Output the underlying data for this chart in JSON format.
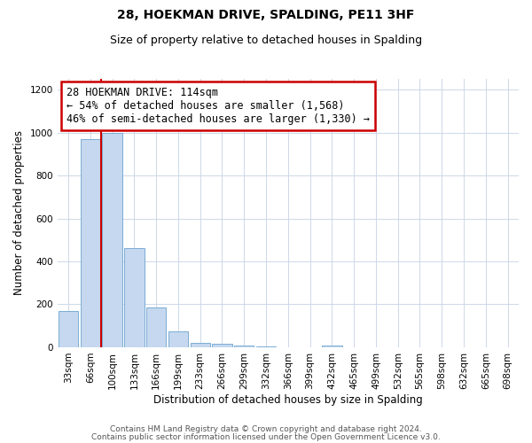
{
  "title": "28, HOEKMAN DRIVE, SPALDING, PE11 3HF",
  "subtitle": "Size of property relative to detached houses in Spalding",
  "xlabel": "Distribution of detached houses by size in Spalding",
  "ylabel": "Number of detached properties",
  "bar_labels": [
    "33sqm",
    "66sqm",
    "100sqm",
    "133sqm",
    "166sqm",
    "199sqm",
    "233sqm",
    "266sqm",
    "299sqm",
    "332sqm",
    "366sqm",
    "399sqm",
    "432sqm",
    "465sqm",
    "499sqm",
    "532sqm",
    "565sqm",
    "598sqm",
    "632sqm",
    "665sqm",
    "698sqm"
  ],
  "bar_values": [
    170,
    970,
    1000,
    460,
    185,
    75,
    22,
    15,
    10,
    5,
    0,
    0,
    10,
    0,
    0,
    0,
    0,
    0,
    0,
    0,
    0
  ],
  "bar_color": "#c5d8ef",
  "bar_edge_color": "#7aadd4",
  "vline_x_index": 1.5,
  "vline_color": "#cc0000",
  "annotation_text": "28 HOEKMAN DRIVE: 114sqm\n← 54% of detached houses are smaller (1,568)\n46% of semi-detached houses are larger (1,330) →",
  "annotation_box_color": "#ffffff",
  "annotation_box_edge_color": "#cc0000",
  "ylim": [
    0,
    1250
  ],
  "yticks": [
    0,
    200,
    400,
    600,
    800,
    1000,
    1200
  ],
  "footer_line1": "Contains HM Land Registry data © Crown copyright and database right 2024.",
  "footer_line2": "Contains public sector information licensed under the Open Government Licence v3.0.",
  "background_color": "#ffffff",
  "grid_color": "#cdd8e8",
  "title_fontsize": 10,
  "subtitle_fontsize": 9,
  "axis_label_fontsize": 8.5,
  "tick_fontsize": 7.5,
  "annotation_fontsize": 8.5,
  "footer_fontsize": 6.5
}
